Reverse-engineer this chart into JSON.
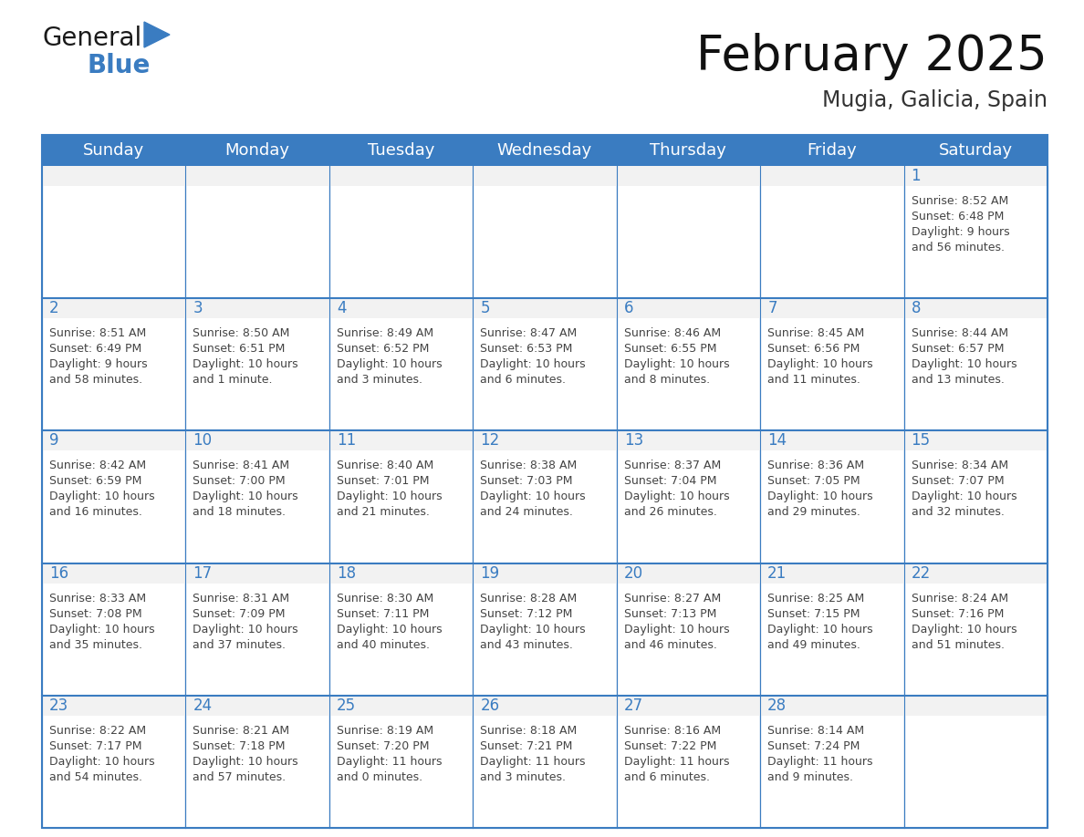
{
  "title": "February 2025",
  "subtitle": "Mugia, Galicia, Spain",
  "header_bg": "#3A7CC1",
  "header_text_color": "#FFFFFF",
  "cell_bg": "#FFFFFF",
  "cell_top_bg": "#F2F2F2",
  "cell_border_color": "#3A7CC1",
  "day_num_color": "#3A7CC1",
  "cell_text_color": "#444444",
  "days_of_week": [
    "Sunday",
    "Monday",
    "Tuesday",
    "Wednesday",
    "Thursday",
    "Friday",
    "Saturday"
  ],
  "calendar_data": [
    [
      null,
      null,
      null,
      null,
      null,
      null,
      {
        "day": 1,
        "sunrise": "8:52 AM",
        "sunset": "6:48 PM",
        "daylight_line1": "9 hours",
        "daylight_line2": "and 56 minutes."
      }
    ],
    [
      {
        "day": 2,
        "sunrise": "8:51 AM",
        "sunset": "6:49 PM",
        "daylight_line1": "9 hours",
        "daylight_line2": "and 58 minutes."
      },
      {
        "day": 3,
        "sunrise": "8:50 AM",
        "sunset": "6:51 PM",
        "daylight_line1": "10 hours",
        "daylight_line2": "and 1 minute."
      },
      {
        "day": 4,
        "sunrise": "8:49 AM",
        "sunset": "6:52 PM",
        "daylight_line1": "10 hours",
        "daylight_line2": "and 3 minutes."
      },
      {
        "day": 5,
        "sunrise": "8:47 AM",
        "sunset": "6:53 PM",
        "daylight_line1": "10 hours",
        "daylight_line2": "and 6 minutes."
      },
      {
        "day": 6,
        "sunrise": "8:46 AM",
        "sunset": "6:55 PM",
        "daylight_line1": "10 hours",
        "daylight_line2": "and 8 minutes."
      },
      {
        "day": 7,
        "sunrise": "8:45 AM",
        "sunset": "6:56 PM",
        "daylight_line1": "10 hours",
        "daylight_line2": "and 11 minutes."
      },
      {
        "day": 8,
        "sunrise": "8:44 AM",
        "sunset": "6:57 PM",
        "daylight_line1": "10 hours",
        "daylight_line2": "and 13 minutes."
      }
    ],
    [
      {
        "day": 9,
        "sunrise": "8:42 AM",
        "sunset": "6:59 PM",
        "daylight_line1": "10 hours",
        "daylight_line2": "and 16 minutes."
      },
      {
        "day": 10,
        "sunrise": "8:41 AM",
        "sunset": "7:00 PM",
        "daylight_line1": "10 hours",
        "daylight_line2": "and 18 minutes."
      },
      {
        "day": 11,
        "sunrise": "8:40 AM",
        "sunset": "7:01 PM",
        "daylight_line1": "10 hours",
        "daylight_line2": "and 21 minutes."
      },
      {
        "day": 12,
        "sunrise": "8:38 AM",
        "sunset": "7:03 PM",
        "daylight_line1": "10 hours",
        "daylight_line2": "and 24 minutes."
      },
      {
        "day": 13,
        "sunrise": "8:37 AM",
        "sunset": "7:04 PM",
        "daylight_line1": "10 hours",
        "daylight_line2": "and 26 minutes."
      },
      {
        "day": 14,
        "sunrise": "8:36 AM",
        "sunset": "7:05 PM",
        "daylight_line1": "10 hours",
        "daylight_line2": "and 29 minutes."
      },
      {
        "day": 15,
        "sunrise": "8:34 AM",
        "sunset": "7:07 PM",
        "daylight_line1": "10 hours",
        "daylight_line2": "and 32 minutes."
      }
    ],
    [
      {
        "day": 16,
        "sunrise": "8:33 AM",
        "sunset": "7:08 PM",
        "daylight_line1": "10 hours",
        "daylight_line2": "and 35 minutes."
      },
      {
        "day": 17,
        "sunrise": "8:31 AM",
        "sunset": "7:09 PM",
        "daylight_line1": "10 hours",
        "daylight_line2": "and 37 minutes."
      },
      {
        "day": 18,
        "sunrise": "8:30 AM",
        "sunset": "7:11 PM",
        "daylight_line1": "10 hours",
        "daylight_line2": "and 40 minutes."
      },
      {
        "day": 19,
        "sunrise": "8:28 AM",
        "sunset": "7:12 PM",
        "daylight_line1": "10 hours",
        "daylight_line2": "and 43 minutes."
      },
      {
        "day": 20,
        "sunrise": "8:27 AM",
        "sunset": "7:13 PM",
        "daylight_line1": "10 hours",
        "daylight_line2": "and 46 minutes."
      },
      {
        "day": 21,
        "sunrise": "8:25 AM",
        "sunset": "7:15 PM",
        "daylight_line1": "10 hours",
        "daylight_line2": "and 49 minutes."
      },
      {
        "day": 22,
        "sunrise": "8:24 AM",
        "sunset": "7:16 PM",
        "daylight_line1": "10 hours",
        "daylight_line2": "and 51 minutes."
      }
    ],
    [
      {
        "day": 23,
        "sunrise": "8:22 AM",
        "sunset": "7:17 PM",
        "daylight_line1": "10 hours",
        "daylight_line2": "and 54 minutes."
      },
      {
        "day": 24,
        "sunrise": "8:21 AM",
        "sunset": "7:18 PM",
        "daylight_line1": "10 hours",
        "daylight_line2": "and 57 minutes."
      },
      {
        "day": 25,
        "sunrise": "8:19 AM",
        "sunset": "7:20 PM",
        "daylight_line1": "11 hours",
        "daylight_line2": "and 0 minutes."
      },
      {
        "day": 26,
        "sunrise": "8:18 AM",
        "sunset": "7:21 PM",
        "daylight_line1": "11 hours",
        "daylight_line2": "and 3 minutes."
      },
      {
        "day": 27,
        "sunrise": "8:16 AM",
        "sunset": "7:22 PM",
        "daylight_line1": "11 hours",
        "daylight_line2": "and 6 minutes."
      },
      {
        "day": 28,
        "sunrise": "8:14 AM",
        "sunset": "7:24 PM",
        "daylight_line1": "11 hours",
        "daylight_line2": "and 9 minutes."
      },
      null
    ]
  ],
  "logo_color_general": "#1a1a1a",
  "logo_color_blue": "#3A7CC1",
  "logo_triangle_color": "#3A7CC1",
  "title_fontsize": 38,
  "subtitle_fontsize": 17,
  "dow_fontsize": 13,
  "day_num_fontsize": 12,
  "cell_text_fontsize": 9
}
